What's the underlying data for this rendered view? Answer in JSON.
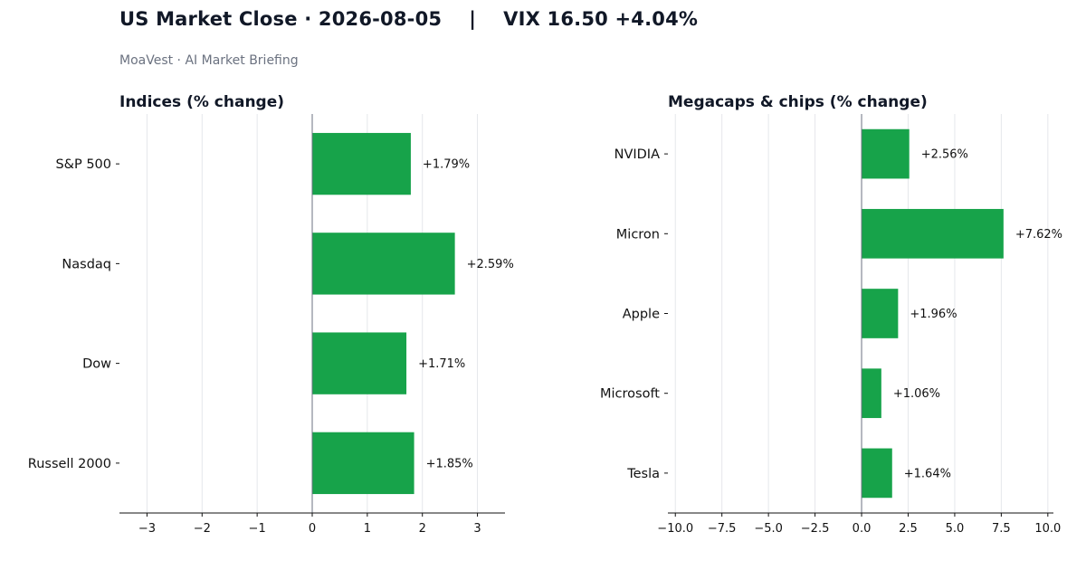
{
  "header": {
    "title": "US Market Close · 2026-08-05    |    VIX 16.50 +4.04%",
    "subtitle": "MoaVest · AI Market Briefing"
  },
  "colors": {
    "bar": "#17a34a",
    "zero_line": "#6b7280",
    "grid": "#e5e7eb",
    "axis": "#111111"
  },
  "chart_data": [
    {
      "type": "bar",
      "orientation": "horizontal",
      "title": "Indices  (% change)",
      "categories": [
        "S&P 500",
        "Nasdaq",
        "Dow",
        "Russell 2000"
      ],
      "values": [
        1.79,
        2.59,
        1.71,
        1.85
      ],
      "data_labels": [
        "+1.79%",
        "+2.59%",
        "+1.71%",
        "+1.85%"
      ],
      "xlim": [
        -3.5,
        3.5
      ],
      "xticks": [
        -3,
        -2,
        -1,
        0,
        1,
        2,
        3
      ],
      "xtick_labels": [
        "−3",
        "−2",
        "−1",
        "0",
        "1",
        "2",
        "3"
      ],
      "grid": true
    },
    {
      "type": "bar",
      "orientation": "horizontal",
      "title": "Megacaps & chips  (% change)",
      "categories": [
        "NVIDIA",
        "Micron",
        "Apple",
        "Microsoft",
        "Tesla"
      ],
      "values": [
        2.56,
        7.62,
        1.96,
        1.06,
        1.64
      ],
      "data_labels": [
        "+2.56%",
        "+7.62%",
        "+1.96%",
        "+1.06%",
        "+1.64%"
      ],
      "xlim": [
        -10.4,
        10.3
      ],
      "xticks": [
        -10,
        -7.5,
        -5,
        -2.5,
        0,
        2.5,
        5,
        7.5,
        10
      ],
      "xtick_labels": [
        "−10.0",
        "−7.5",
        "−5.0",
        "−2.5",
        "0.0",
        "2.5",
        "5.0",
        "7.5",
        "10.0"
      ],
      "grid": true
    }
  ]
}
